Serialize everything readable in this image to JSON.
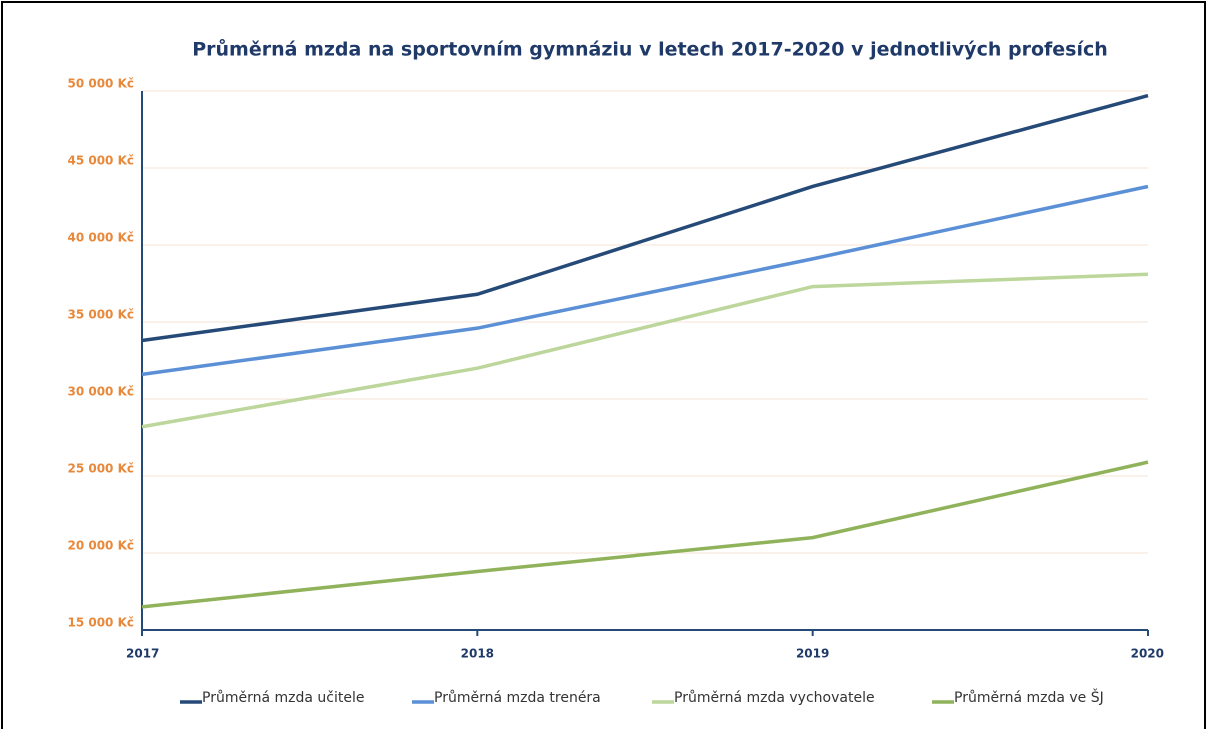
{
  "chart_data": {
    "type": "line",
    "title": "Průměrná mzda na sportovním gymnáziu v letech 2017-2020 v jednotlivých profesích",
    "categories": [
      "2017",
      "2018",
      "2019",
      "2020"
    ],
    "series": [
      {
        "name": "Průměrná mzda učitele",
        "color": "#264a78",
        "values": [
          33800,
          36800,
          43800,
          49700
        ]
      },
      {
        "name": "Průměrná mzda trenéra",
        "color": "#5b8fd6",
        "values": [
          31600,
          34600,
          39100,
          43800
        ]
      },
      {
        "name": "Průměrná mzda vychovatele",
        "color": "#bcd69c",
        "values": [
          28200,
          32000,
          37300,
          38100
        ]
      },
      {
        "name": "Průměrná mzda ve ŠJ",
        "color": "#8fb25a",
        "values": [
          16500,
          18800,
          21000,
          25900
        ]
      }
    ],
    "ylim": [
      15000,
      50000
    ],
    "yticks": [
      {
        "value": 15000,
        "label": "15 000 Kč"
      },
      {
        "value": 20000,
        "label": "20 000 Kč"
      },
      {
        "value": 25000,
        "label": "25 000 Kč"
      },
      {
        "value": 30000,
        "label": "30 000 Kč"
      },
      {
        "value": 35000,
        "label": "35 000 Kč"
      },
      {
        "value": 40000,
        "label": "40 000 Kč"
      },
      {
        "value": 45000,
        "label": "45 000 Kč"
      },
      {
        "value": 50000,
        "label": "50 000 Kč"
      }
    ],
    "grid": true,
    "legend": "bottom"
  }
}
